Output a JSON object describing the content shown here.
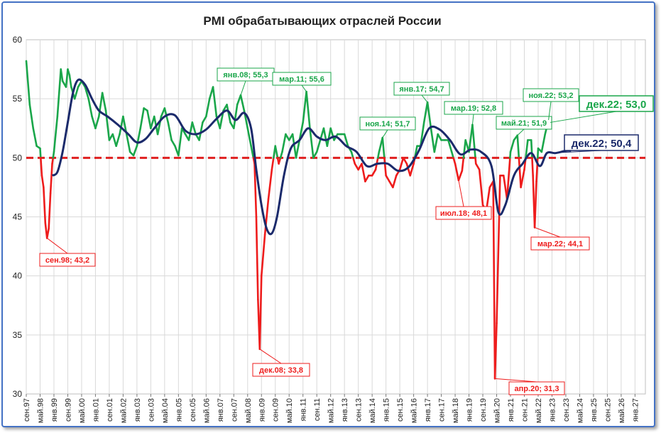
{
  "chart_data": {
    "type": "line",
    "title": "PMI обрабатывающих отраслей России",
    "xlabel": "",
    "ylabel": "",
    "ylim": [
      30,
      60
    ],
    "yticks": [
      30,
      35,
      40,
      45,
      50,
      55,
      60
    ],
    "x_range": [
      "1997-09",
      "2027-07"
    ],
    "x_tick_labels": [
      "сен.97",
      "май.98",
      "янв.99",
      "сен.99",
      "май.00",
      "янв.01",
      "сен.01",
      "май.02",
      "янв.03",
      "сен.03",
      "май.04",
      "янв.05",
      "сен.05",
      "май.06",
      "янв.07",
      "сен.07",
      "май.08",
      "янв.09",
      "сен.09",
      "май.10",
      "янв.11",
      "сен.11",
      "май.12",
      "янв.13",
      "сен.13",
      "май.14",
      "янв.15",
      "сен.15",
      "май.16",
      "янв.17",
      "сен.17",
      "май.18",
      "янв.19",
      "сен.19",
      "май.20",
      "янв.21",
      "сен.21",
      "май.22",
      "янв.23",
      "сен.23",
      "май.24",
      "янв.25",
      "сен.25",
      "май.26",
      "янв.27"
    ],
    "threshold": 50,
    "colors": {
      "above": "#1aa64a",
      "below": "#ee1c1c",
      "trend": "#1b2a6b",
      "threshold": "#e02020",
      "grid": "#d9d9d9"
    },
    "series": [
      {
        "name": "PMI",
        "colored_by_threshold": true,
        "points": [
          [
            "1997-09",
            58.2
          ],
          [
            "1997-11",
            54.5
          ],
          [
            "1998-01",
            52.5
          ],
          [
            "1998-03",
            51.0
          ],
          [
            "1998-05",
            50.8
          ],
          [
            "1998-06",
            48.5
          ],
          [
            "1998-07",
            47.5
          ],
          [
            "1998-08",
            44.5
          ],
          [
            "1998-09",
            43.2
          ],
          [
            "1998-10",
            44.0
          ],
          [
            "1998-11",
            47.0
          ],
          [
            "1998-12",
            49.5
          ],
          [
            "1999-01",
            50.5
          ],
          [
            "1999-03",
            53.5
          ],
          [
            "1999-05",
            57.5
          ],
          [
            "1999-06",
            56.5
          ],
          [
            "1999-08",
            56.0
          ],
          [
            "1999-09",
            57.5
          ],
          [
            "1999-10",
            57.0
          ],
          [
            "1999-11",
            56.0
          ],
          [
            "2000-01",
            55.0
          ],
          [
            "2000-03",
            56.0
          ],
          [
            "2000-05",
            56.5
          ],
          [
            "2000-07",
            56.0
          ],
          [
            "2000-09",
            55.0
          ],
          [
            "2000-11",
            53.5
          ],
          [
            "2001-01",
            52.5
          ],
          [
            "2001-03",
            53.5
          ],
          [
            "2001-05",
            55.5
          ],
          [
            "2001-07",
            54.0
          ],
          [
            "2001-09",
            51.5
          ],
          [
            "2001-11",
            52.0
          ],
          [
            "2002-01",
            51.0
          ],
          [
            "2002-03",
            52.0
          ],
          [
            "2002-05",
            53.5
          ],
          [
            "2002-07",
            52.0
          ],
          [
            "2002-09",
            50.5
          ],
          [
            "2002-11",
            50.2
          ],
          [
            "2003-01",
            51.0
          ],
          [
            "2003-03",
            52.5
          ],
          [
            "2003-05",
            54.2
          ],
          [
            "2003-07",
            54.0
          ],
          [
            "2003-09",
            52.5
          ],
          [
            "2003-11",
            53.5
          ],
          [
            "2004-01",
            52.0
          ],
          [
            "2004-03",
            53.5
          ],
          [
            "2004-05",
            54.2
          ],
          [
            "2004-07",
            53.0
          ],
          [
            "2004-09",
            51.5
          ],
          [
            "2004-11",
            51.0
          ],
          [
            "2005-01",
            50.2
          ],
          [
            "2005-03",
            52.5
          ],
          [
            "2005-05",
            52.0
          ],
          [
            "2005-07",
            51.5
          ],
          [
            "2005-09",
            53.0
          ],
          [
            "2005-11",
            52.0
          ],
          [
            "2006-01",
            51.5
          ],
          [
            "2006-03",
            53.0
          ],
          [
            "2006-05",
            53.5
          ],
          [
            "2006-07",
            55.0
          ],
          [
            "2006-09",
            56.0
          ],
          [
            "2006-11",
            53.5
          ],
          [
            "2007-01",
            52.5
          ],
          [
            "2007-03",
            54.0
          ],
          [
            "2007-05",
            54.5
          ],
          [
            "2007-07",
            53.0
          ],
          [
            "2007-09",
            52.5
          ],
          [
            "2007-11",
            54.5
          ],
          [
            "2008-01",
            55.3
          ],
          [
            "2008-03",
            54.0
          ],
          [
            "2008-05",
            52.5
          ],
          [
            "2008-07",
            51.0
          ],
          [
            "2008-09",
            49.5
          ],
          [
            "2008-10",
            45.0
          ],
          [
            "2008-11",
            38.0
          ],
          [
            "2008-12",
            33.8
          ],
          [
            "2009-01",
            40.0
          ],
          [
            "2009-03",
            43.5
          ],
          [
            "2009-05",
            46.5
          ],
          [
            "2009-07",
            49.0
          ],
          [
            "2009-09",
            51.0
          ],
          [
            "2009-11",
            49.5
          ],
          [
            "2010-01",
            50.5
          ],
          [
            "2010-03",
            52.0
          ],
          [
            "2010-05",
            51.5
          ],
          [
            "2010-07",
            52.0
          ],
          [
            "2010-09",
            50.0
          ],
          [
            "2010-11",
            51.5
          ],
          [
            "2011-01",
            53.0
          ],
          [
            "2011-03",
            55.6
          ],
          [
            "2011-05",
            52.5
          ],
          [
            "2011-07",
            50.0
          ],
          [
            "2011-09",
            50.5
          ],
          [
            "2011-11",
            51.5
          ],
          [
            "2012-01",
            52.5
          ],
          [
            "2012-03",
            51.0
          ],
          [
            "2012-05",
            52.5
          ],
          [
            "2012-07",
            51.5
          ],
          [
            "2012-09",
            52.0
          ],
          [
            "2012-11",
            52.0
          ],
          [
            "2013-01",
            52.0
          ],
          [
            "2013-03",
            51.0
          ],
          [
            "2013-05",
            50.5
          ],
          [
            "2013-07",
            49.5
          ],
          [
            "2013-09",
            49.0
          ],
          [
            "2013-11",
            49.5
          ],
          [
            "2014-01",
            48.0
          ],
          [
            "2014-03",
            48.5
          ],
          [
            "2014-05",
            48.5
          ],
          [
            "2014-07",
            49.0
          ],
          [
            "2014-09",
            50.5
          ],
          [
            "2014-11",
            51.7
          ],
          [
            "2015-01",
            48.5
          ],
          [
            "2015-03",
            48.0
          ],
          [
            "2015-05",
            47.5
          ],
          [
            "2015-07",
            48.5
          ],
          [
            "2015-09",
            49.0
          ],
          [
            "2015-11",
            50.0
          ],
          [
            "2016-01",
            49.5
          ],
          [
            "2016-03",
            48.5
          ],
          [
            "2016-05",
            49.5
          ],
          [
            "2016-07",
            51.0
          ],
          [
            "2016-09",
            51.0
          ],
          [
            "2016-11",
            53.0
          ],
          [
            "2017-01",
            54.7
          ],
          [
            "2017-03",
            52.5
          ],
          [
            "2017-05",
            50.5
          ],
          [
            "2017-07",
            52.0
          ],
          [
            "2017-09",
            51.5
          ],
          [
            "2017-11",
            51.5
          ],
          [
            "2018-01",
            51.5
          ],
          [
            "2018-03",
            50.5
          ],
          [
            "2018-05",
            49.5
          ],
          [
            "2018-07",
            48.1
          ],
          [
            "2018-09",
            48.9
          ],
          [
            "2018-11",
            51.5
          ],
          [
            "2019-01",
            50.5
          ],
          [
            "2019-03",
            52.8
          ],
          [
            "2019-05",
            49.5
          ],
          [
            "2019-07",
            49.0
          ],
          [
            "2019-09",
            46.0
          ],
          [
            "2019-11",
            45.5
          ],
          [
            "2020-01",
            47.5
          ],
          [
            "2020-03",
            48.0
          ],
          [
            "2020-04",
            31.3
          ],
          [
            "2020-05",
            36.0
          ],
          [
            "2020-07",
            48.5
          ],
          [
            "2020-09",
            48.5
          ],
          [
            "2020-11",
            46.5
          ],
          [
            "2021-01",
            50.5
          ],
          [
            "2021-03",
            51.5
          ],
          [
            "2021-05",
            51.9
          ],
          [
            "2021-07",
            47.5
          ],
          [
            "2021-09",
            49.0
          ],
          [
            "2021-11",
            51.5
          ],
          [
            "2022-01",
            51.5
          ],
          [
            "2022-02",
            48.5
          ],
          [
            "2022-03",
            44.1
          ],
          [
            "2022-04",
            48.0
          ],
          [
            "2022-05",
            50.8
          ],
          [
            "2022-07",
            50.5
          ],
          [
            "2022-09",
            52.0
          ],
          [
            "2022-11",
            53.2
          ],
          [
            "2022-12",
            53.0
          ]
        ]
      },
      {
        "name": "Trend",
        "points": [
          [
            "1998-12",
            48.5
          ],
          [
            "1999-03",
            48.8
          ],
          [
            "1999-06",
            50.5
          ],
          [
            "1999-09",
            53.0
          ],
          [
            "1999-12",
            55.5
          ],
          [
            "2000-03",
            56.6
          ],
          [
            "2000-07",
            56.2
          ],
          [
            "2000-11",
            55.0
          ],
          [
            "2001-03",
            54.0
          ],
          [
            "2001-08",
            53.5
          ],
          [
            "2002-02",
            52.8
          ],
          [
            "2002-08",
            52.0
          ],
          [
            "2003-01",
            51.3
          ],
          [
            "2003-06",
            51.6
          ],
          [
            "2003-11",
            52.5
          ],
          [
            "2004-05",
            53.5
          ],
          [
            "2004-11",
            53.6
          ],
          [
            "2005-05",
            52.3
          ],
          [
            "2005-11",
            52.0
          ],
          [
            "2006-05",
            52.4
          ],
          [
            "2006-11",
            53.3
          ],
          [
            "2007-05",
            54.0
          ],
          [
            "2007-10",
            53.2
          ],
          [
            "2008-03",
            53.8
          ],
          [
            "2008-07",
            52.5
          ],
          [
            "2008-10",
            49.0
          ],
          [
            "2009-01",
            46.0
          ],
          [
            "2009-04",
            44.0
          ],
          [
            "2009-07",
            43.6
          ],
          [
            "2009-10",
            45.0
          ],
          [
            "2010-02",
            48.5
          ],
          [
            "2010-06",
            50.8
          ],
          [
            "2010-11",
            51.5
          ],
          [
            "2011-04",
            52.5
          ],
          [
            "2011-09",
            51.8
          ],
          [
            "2012-02",
            51.5
          ],
          [
            "2012-08",
            51.8
          ],
          [
            "2013-02",
            51.0
          ],
          [
            "2013-08",
            50.5
          ],
          [
            "2014-02",
            49.3
          ],
          [
            "2014-08",
            49.5
          ],
          [
            "2015-02",
            49.5
          ],
          [
            "2015-08",
            48.9
          ],
          [
            "2016-02",
            49.2
          ],
          [
            "2016-08",
            50.6
          ],
          [
            "2017-02",
            52.5
          ],
          [
            "2017-08",
            52.4
          ],
          [
            "2018-02",
            51.5
          ],
          [
            "2018-08",
            50.3
          ],
          [
            "2019-02",
            50.7
          ],
          [
            "2019-08",
            50.5
          ],
          [
            "2020-02",
            49.3
          ],
          [
            "2020-06",
            45.4
          ],
          [
            "2020-10",
            46.0
          ],
          [
            "2021-03",
            48.5
          ],
          [
            "2021-08",
            49.5
          ],
          [
            "2022-01",
            50.4
          ],
          [
            "2022-06",
            49.3
          ],
          [
            "2022-10",
            50.4
          ],
          [
            "2023-03",
            50.4
          ],
          [
            "2023-09",
            50.6
          ],
          [
            "2023-12",
            50.6
          ]
        ]
      }
    ],
    "annotations": [
      {
        "text": "сен.98; 43,2",
        "x": "1998-09",
        "y": 43.2,
        "color": "#ee1c1c"
      },
      {
        "text": "янв.08; 55,3",
        "x": "2008-01",
        "y": 55.3,
        "color": "#1aa64a"
      },
      {
        "text": "мар.11; 55,6",
        "x": "2011-03",
        "y": 55.6,
        "color": "#1aa64a"
      },
      {
        "text": "дек.08; 33,8",
        "x": "2008-12",
        "y": 33.8,
        "color": "#ee1c1c"
      },
      {
        "text": "ноя.14; 51,7",
        "x": "2014-11",
        "y": 51.7,
        "color": "#1aa64a"
      },
      {
        "text": "янв.17; 54,7",
        "x": "2017-01",
        "y": 54.7,
        "color": "#1aa64a"
      },
      {
        "text": "мар.19; 52,8",
        "x": "2019-03",
        "y": 52.8,
        "color": "#1aa64a"
      },
      {
        "text": "июл.18; 48,1",
        "x": "2018-07",
        "y": 48.1,
        "color": "#ee1c1c"
      },
      {
        "text": "май.21; 51,9",
        "x": "2021-05",
        "y": 51.9,
        "color": "#1aa64a"
      },
      {
        "text": "ноя.22; 53,2",
        "x": "2022-11",
        "y": 53.2,
        "color": "#1aa64a"
      },
      {
        "text": "мар.22; 44,1",
        "x": "2022-03",
        "y": 44.1,
        "color": "#ee1c1c"
      },
      {
        "text": "апр.20; 31,3",
        "x": "2020-04",
        "y": 31.3,
        "color": "#ee1c1c"
      },
      {
        "text": "дек.22; 53,0",
        "x": "2022-12",
        "y": 53.0,
        "color": "#1aa64a",
        "emphasis": true
      },
      {
        "text": "дек.22; 50,4",
        "x": "2022-12",
        "y": 50.4,
        "color": "#1b2a6b",
        "emphasis": true
      }
    ]
  }
}
